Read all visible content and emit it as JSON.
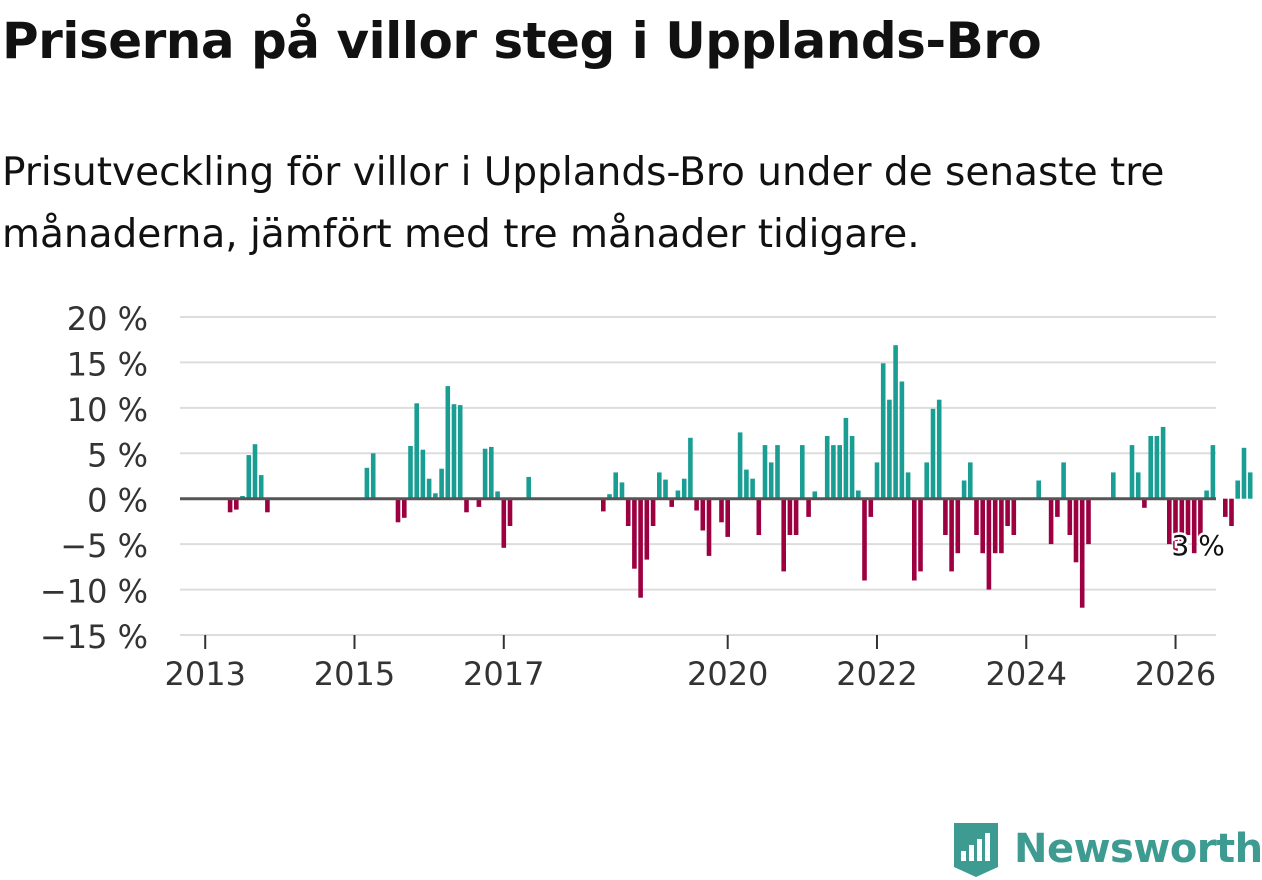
{
  "title": "Priserna på villor steg i Upplands-Bro",
  "subtitle": "Prisutveckling för villor i Upplands-Bro under de senaste tre månaderna, jämfört med tre månader tidigare.",
  "brand": {
    "name": "Newsworthy"
  },
  "colors": {
    "positive": "#1a9e94",
    "negative": "#9c0041",
    "grid": "#dddddd",
    "zero": "#555555"
  },
  "chart_data": {
    "type": "bar",
    "title": "Priserna på villor steg i Upplands-Bro",
    "xlabel": "",
    "ylabel": "",
    "ylim": [
      -15,
      20
    ],
    "yticks": [
      20,
      15,
      10,
      5,
      0,
      -5,
      -10,
      -15
    ],
    "ytick_labels": [
      "20 %",
      "15 %",
      "10 %",
      "5 %",
      "0 %",
      "−5 %",
      "−10 %",
      "−15 %"
    ],
    "xticks": [
      {
        "label": "2013",
        "year": 2013
      },
      {
        "label": "2015",
        "year": 2015
      },
      {
        "label": "2017",
        "year": 2017
      },
      {
        "label": "2020",
        "year": 2020
      },
      {
        "label": "2022",
        "year": 2022
      },
      {
        "label": "2024",
        "year": 2024
      },
      {
        "label": "2026",
        "year": 2026
      }
    ],
    "annotation": {
      "text": "3 %",
      "index": 155
    },
    "start_year": 2013,
    "start_month": 5,
    "values": [
      -1.5,
      -1.2,
      0.3,
      4.8,
      6.0,
      2.6,
      -1.5,
      null,
      null,
      null,
      null,
      null,
      null,
      null,
      null,
      null,
      null,
      null,
      null,
      null,
      null,
      null,
      3.4,
      5.0,
      null,
      null,
      null,
      -2.6,
      -2.1,
      5.8,
      10.5,
      5.4,
      2.2,
      0.6,
      3.3,
      12.4,
      10.4,
      10.3,
      -1.5,
      null,
      -0.9,
      5.5,
      5.7,
      0.8,
      -5.4,
      -3.0,
      null,
      null,
      2.4,
      null,
      null,
      null,
      null,
      null,
      null,
      null,
      null,
      null,
      null,
      null,
      -1.4,
      0.5,
      2.9,
      1.8,
      -3.0,
      -7.7,
      -10.9,
      -6.7,
      -3.0,
      2.9,
      2.1,
      -0.9,
      0.9,
      2.2,
      6.7,
      -1.3,
      -3.5,
      -6.3,
      null,
      -2.6,
      -4.2,
      null,
      7.3,
      3.2,
      2.2,
      -4.0,
      5.9,
      4.0,
      5.9,
      -8.0,
      -4.0,
      -4.0,
      5.9,
      -2.0,
      0.8,
      null,
      6.9,
      5.9,
      5.9,
      8.9,
      6.9,
      0.9,
      -9.0,
      -2.0,
      4.0,
      14.9,
      10.9,
      16.9,
      12.9,
      2.9,
      -9.0,
      -8.0,
      4.0,
      9.9,
      10.9,
      -4.0,
      -8.0,
      -6.0,
      2.0,
      4.0,
      -4.0,
      -6.0,
      -10.0,
      -6.0,
      -6.0,
      -3.0,
      -4.0,
      null,
      null,
      null,
      2.0,
      null,
      -5.0,
      -2.0,
      4.0,
      -4.0,
      -7.0,
      -12.0,
      -5.0,
      null,
      null,
      null,
      2.9,
      null,
      null,
      5.9,
      2.9,
      -1.0,
      6.9,
      6.9,
      7.9,
      -5.0,
      -6.0,
      -5.0,
      -4.0,
      -6.0,
      -5.0,
      0.9,
      5.9,
      null,
      -2.0,
      -3.0,
      2.0,
      5.6,
      2.9
    ]
  }
}
